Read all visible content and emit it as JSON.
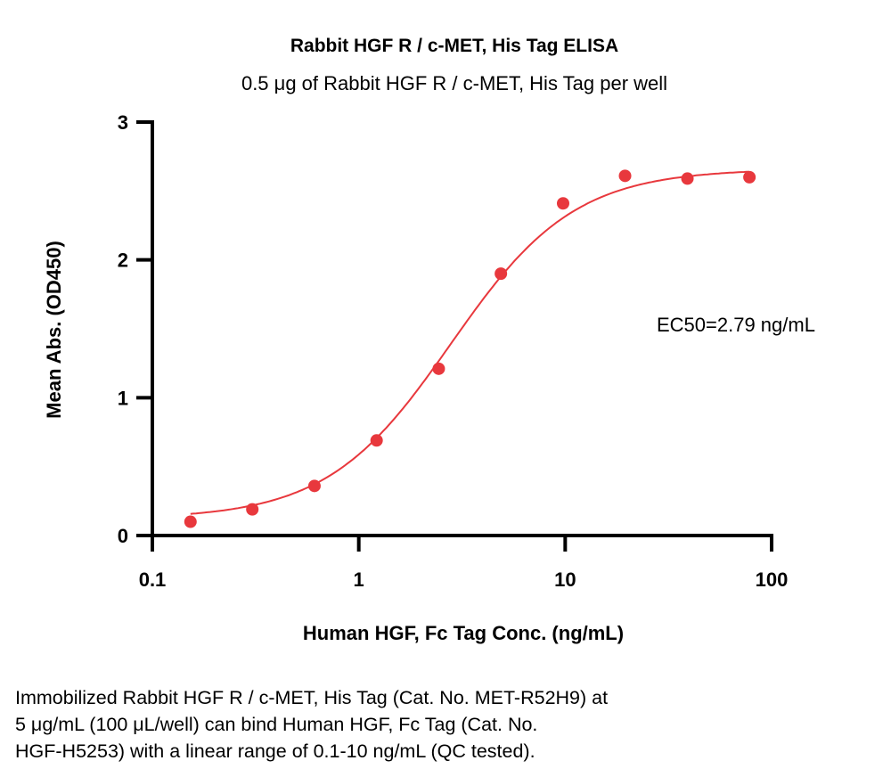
{
  "chart_data": {
    "type": "scatter",
    "title": "Rabbit HGF R / c-MET, His Tag ELISA",
    "subtitle": "0.5 μg of Rabbit HGF R / c-MET, His Tag per well",
    "xlabel": "Human HGF, Fc Tag Conc. (ng/mL)",
    "ylabel": "Mean Abs. (OD450)",
    "xscale": "log",
    "xlim": [
      0.1,
      100
    ],
    "ylim": [
      0,
      3
    ],
    "xticks": [
      "0.1",
      "1",
      "10",
      "100"
    ],
    "yticks": [
      "0",
      "1",
      "2",
      "3"
    ],
    "grid": false,
    "series": [
      {
        "name": "Mean Abs.",
        "color": "#e8383d",
        "x": [
          0.153,
          0.305,
          0.61,
          1.22,
          2.44,
          4.88,
          9.77,
          19.5,
          39.1,
          78.1
        ],
        "y": [
          0.1,
          0.19,
          0.36,
          0.69,
          1.21,
          1.9,
          2.41,
          2.61,
          2.59,
          2.6
        ]
      }
    ],
    "fit": {
      "model": "4PL",
      "bottom": 0.12,
      "top": 2.66,
      "ec50": 2.79,
      "hill": 1.45,
      "color": "#e8383d"
    },
    "annotation": "EC50=2.79 ng/mL"
  },
  "caption": {
    "lines": [
      "Immobilized Rabbit HGF R / c-MET, His Tag (Cat. No. MET-R52H9) at",
      "5 μg/mL (100 μL/well) can bind Human HGF, Fc Tag (Cat. No.",
      "HGF-H5253) with a linear range of 0.1-10 ng/mL (QC tested)."
    ]
  }
}
